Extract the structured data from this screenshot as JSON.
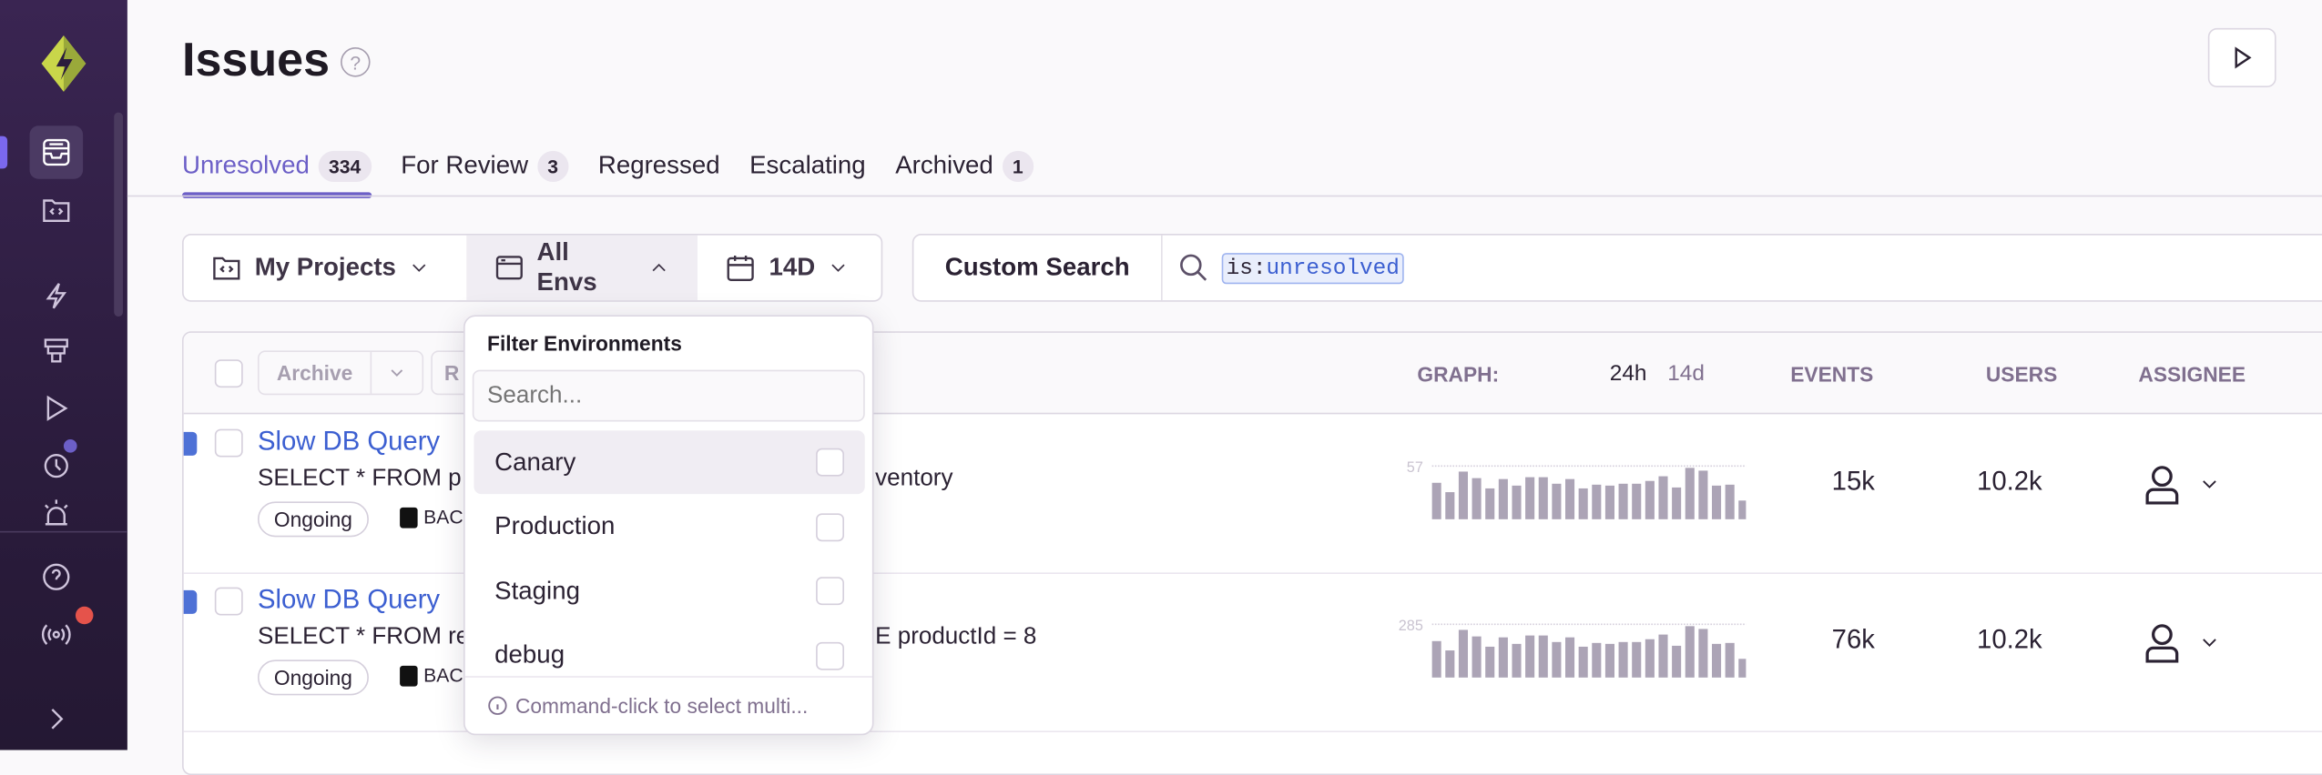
{
  "sidebar": {
    "items": [
      "issues-icon",
      "projects-icon",
      "performance-icon",
      "releases-icon",
      "replays-icon",
      "crons-icon",
      "alerts-icon"
    ],
    "help": "help-icon",
    "broadcast": "broadcast-icon",
    "expand": "chevron-right-icon",
    "accent": "#6c5fc7",
    "notification_color": "#e5534b"
  },
  "header": {
    "title": "Issues",
    "help_icon": "?"
  },
  "tabs": [
    {
      "label": "Unresolved",
      "count": "334"
    },
    {
      "label": "For Review",
      "count": "3"
    },
    {
      "label": "Regressed"
    },
    {
      "label": "Escalating"
    },
    {
      "label": "Archived",
      "count": "1"
    }
  ],
  "filters": {
    "projects": "My Projects",
    "envs": "All Envs",
    "period": "14D"
  },
  "search": {
    "label": "Custom Search",
    "key": "is:",
    "value": "unresolved"
  },
  "table": {
    "header": {
      "archive": "Archive",
      "resolve_partial": "R",
      "graph": "GRAPH:",
      "period_24h": "24h",
      "period_14d": "14d",
      "events": "EVENTS",
      "users": "USERS",
      "assignee": "ASSIGNEE"
    },
    "rows": [
      {
        "title": "Slow DB Query",
        "message_start": "SELECT * FROM p",
        "message_end": "ventory",
        "status": "Ongoing",
        "project": "BAC",
        "graph_max": "57",
        "bars": [
          39,
          29,
          51,
          44,
          33,
          43,
          36,
          45,
          45,
          38,
          43,
          33,
          37,
          36,
          38,
          38,
          41,
          46,
          34,
          55,
          52,
          36,
          37,
          20
        ],
        "events": "15k",
        "users": "10.2k"
      },
      {
        "title": "Slow DB Query",
        "message_start": "SELECT * FROM re",
        "message_end": "E productId = 8",
        "status": "Ongoing",
        "project": "BAC",
        "graph_max": "285",
        "bars": [
          195,
          145,
          255,
          220,
          165,
          215,
          180,
          225,
          225,
          190,
          215,
          165,
          185,
          180,
          190,
          190,
          205,
          230,
          170,
          275,
          260,
          180,
          185,
          100
        ],
        "events": "76k",
        "users": "10.2k"
      }
    ]
  },
  "env_dropdown": {
    "title": "Filter Environments",
    "search_placeholder": "Search...",
    "options": [
      "Canary",
      "Production",
      "Staging",
      "debug"
    ],
    "hint": "Command-click to select multi..."
  }
}
